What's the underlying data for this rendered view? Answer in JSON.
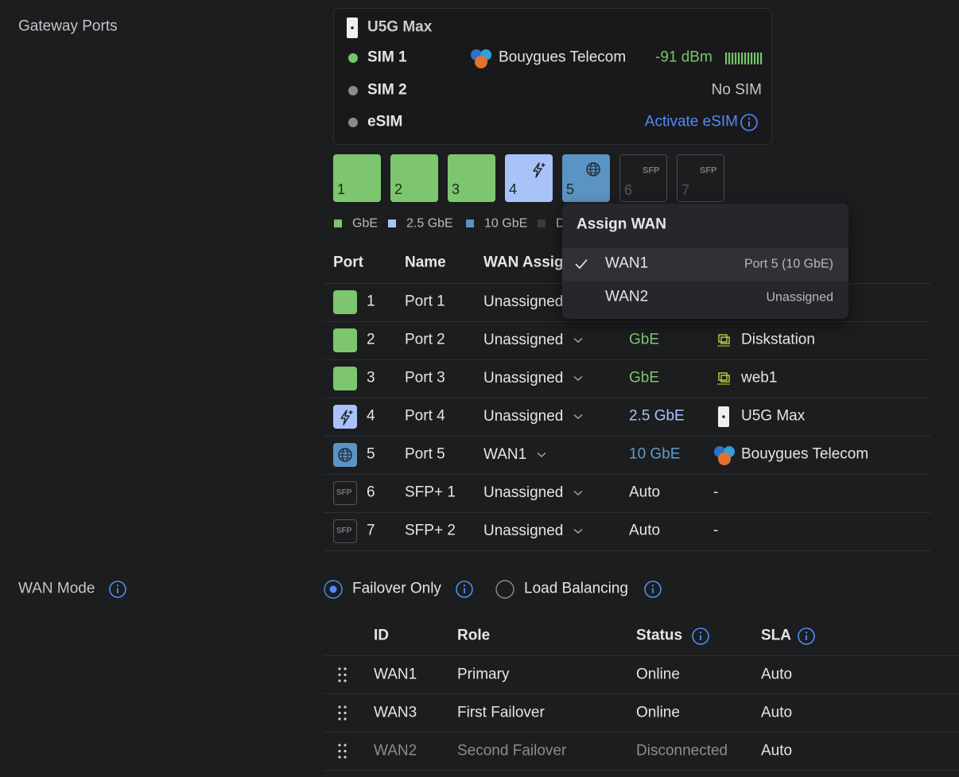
{
  "sidebar": {
    "gateway_ports": "Gateway Ports",
    "wan_mode": "WAN Mode"
  },
  "device_card": {
    "name": "U5G Max",
    "sims": [
      {
        "name": "SIM 1",
        "carrier": "Bouygues Telecom",
        "signal": "-91 dBm"
      },
      {
        "name": "SIM 2",
        "status": "No SIM"
      },
      {
        "name": "eSIM",
        "action": "Activate eSIM"
      }
    ]
  },
  "port_diagram": [
    {
      "number": "1"
    },
    {
      "number": "2"
    },
    {
      "number": "3"
    },
    {
      "number": "4"
    },
    {
      "number": "5"
    },
    {
      "number": "6",
      "tag": "SFP"
    },
    {
      "number": "7",
      "tag": "SFP"
    }
  ],
  "legend": [
    "GbE",
    "2.5 GbE",
    "10 GbE",
    "D"
  ],
  "ports_table": {
    "columns": [
      "Port",
      "Name",
      "WAN Assignment"
    ],
    "rows": [
      {
        "port": "1",
        "name": "Port 1",
        "wan": "Unassigned"
      },
      {
        "port": "2",
        "name": "Port 2",
        "wan": "Unassigned",
        "speed": "GbE",
        "device": "Diskstation"
      },
      {
        "port": "3",
        "name": "Port 3",
        "wan": "Unassigned",
        "speed": "GbE",
        "device": "web1"
      },
      {
        "port": "4",
        "name": "Port 4",
        "wan": "Unassigned",
        "speed": "2.5 GbE",
        "device": "U5G Max"
      },
      {
        "port": "5",
        "name": "Port 5",
        "wan": "WAN1",
        "speed": "10 GbE",
        "device": "Bouygues Telecom"
      },
      {
        "port": "6",
        "tag": "SFP",
        "name": "SFP+ 1",
        "wan": "Unassigned",
        "speed": "Auto",
        "device": "-"
      },
      {
        "port": "7",
        "tag": "SFP",
        "name": "SFP+ 2",
        "wan": "Unassigned",
        "speed": "Auto",
        "device": "-"
      }
    ]
  },
  "assign_wan_menu": {
    "title": "Assign WAN",
    "options": [
      {
        "name": "WAN1",
        "detail": "Port 5 (10 GbE)",
        "selected": true
      },
      {
        "name": "WAN2",
        "detail": "Unassigned",
        "selected": false
      }
    ]
  },
  "wan_mode": {
    "options": [
      "Failover Only",
      "Load Balancing"
    ],
    "selected": 0
  },
  "wan_table": {
    "columns": [
      "ID",
      "Role",
      "Status",
      "SLA"
    ],
    "rows": [
      [
        "WAN1",
        "Primary",
        "Online",
        "Auto"
      ],
      [
        "WAN3",
        "First Failover",
        "Online",
        "Auto"
      ],
      [
        "WAN2",
        "Second Failover",
        "Disconnected",
        "Auto"
      ]
    ]
  }
}
